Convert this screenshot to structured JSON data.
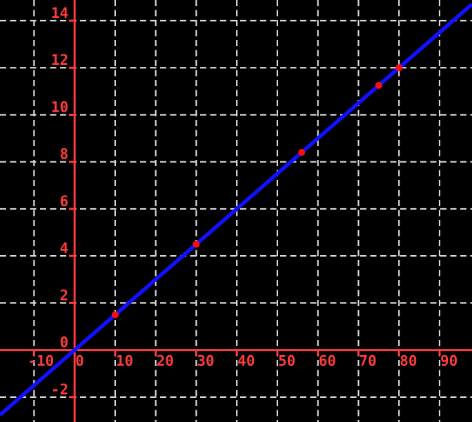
{
  "chart_data": {
    "type": "scatter",
    "title": "",
    "xlabel": "",
    "ylabel": "",
    "grid": true,
    "legend": false,
    "x_ticks": [
      -10,
      0,
      10,
      20,
      30,
      40,
      50,
      60,
      70,
      80,
      90
    ],
    "y_ticks": [
      -2,
      0,
      2,
      4,
      6,
      8,
      10,
      12,
      14
    ],
    "xlim": [
      -18.4,
      98.0
    ],
    "ylim": [
      -3.06,
      14.88
    ],
    "points": [
      {
        "x": 10,
        "y": 1.5
      },
      {
        "x": 30,
        "y": 4.5
      },
      {
        "x": 56,
        "y": 8.4
      },
      {
        "x": 75,
        "y": 11.25
      },
      {
        "x": 80,
        "y": 12
      }
    ],
    "fit_line": {
      "slope": 0.15,
      "intercept": 0
    },
    "style": {
      "background_color": "#000000",
      "grid_color": "#d9d9d9",
      "axis_color": "#ff3b3b",
      "tick_label_color": "#ff3b3b",
      "line_color": "#1111ff",
      "point_color": "#ff0d0d",
      "grid_dash": "9 5.5",
      "grid_width": 2.2,
      "axis_width": 3,
      "tick_length": 8,
      "line_width": 5.5,
      "point_radius": 5
    }
  }
}
